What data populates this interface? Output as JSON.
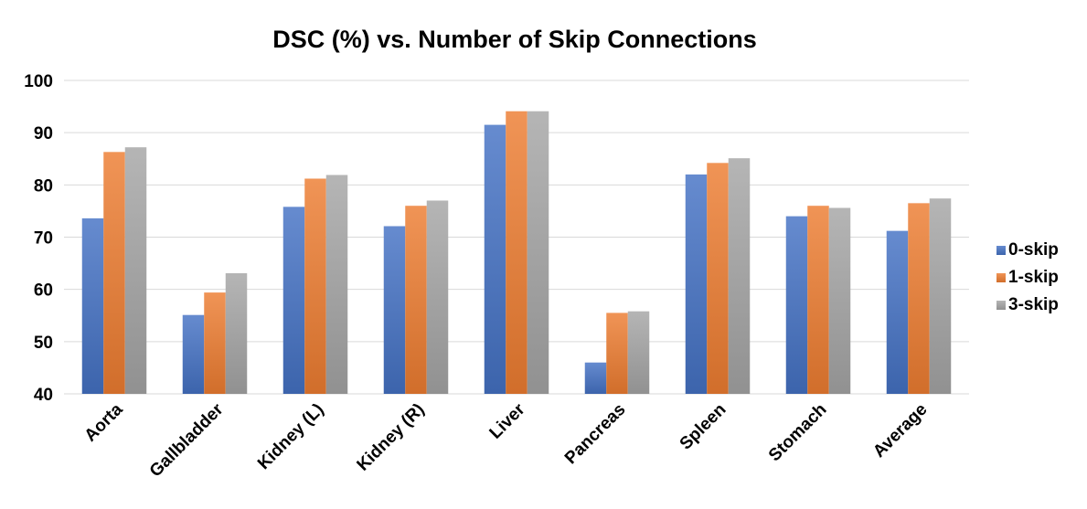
{
  "chart_data": {
    "type": "bar",
    "title": "DSC (%) vs. Number of Skip Connections",
    "xlabel": "",
    "ylabel": "",
    "ylim": [
      40,
      100
    ],
    "yticks": [
      "40",
      "50",
      "60",
      "70",
      "80",
      "90",
      "100"
    ],
    "grid": true,
    "legend_position": "right",
    "categories": [
      "Aorta",
      "Gallbladder",
      "Kidney (L)",
      "Kidney (R)",
      "Liver",
      "Pancreas",
      "Spleen",
      "Stomach",
      "Average"
    ],
    "series": [
      {
        "name": "0-skip",
        "color": "#4472c4",
        "values": [
          73.6,
          55.1,
          75.8,
          72.1,
          91.5,
          46.0,
          82.0,
          74.0,
          71.2
        ]
      },
      {
        "name": "1-skip",
        "color": "#ed7d31",
        "values": [
          86.3,
          59.4,
          81.2,
          76.0,
          94.1,
          55.5,
          84.2,
          76.0,
          76.5
        ]
      },
      {
        "name": "3-skip",
        "color": "#a5a5a5",
        "values": [
          87.2,
          63.1,
          81.9,
          77.0,
          94.1,
          55.8,
          85.1,
          75.6,
          77.4
        ]
      }
    ]
  }
}
